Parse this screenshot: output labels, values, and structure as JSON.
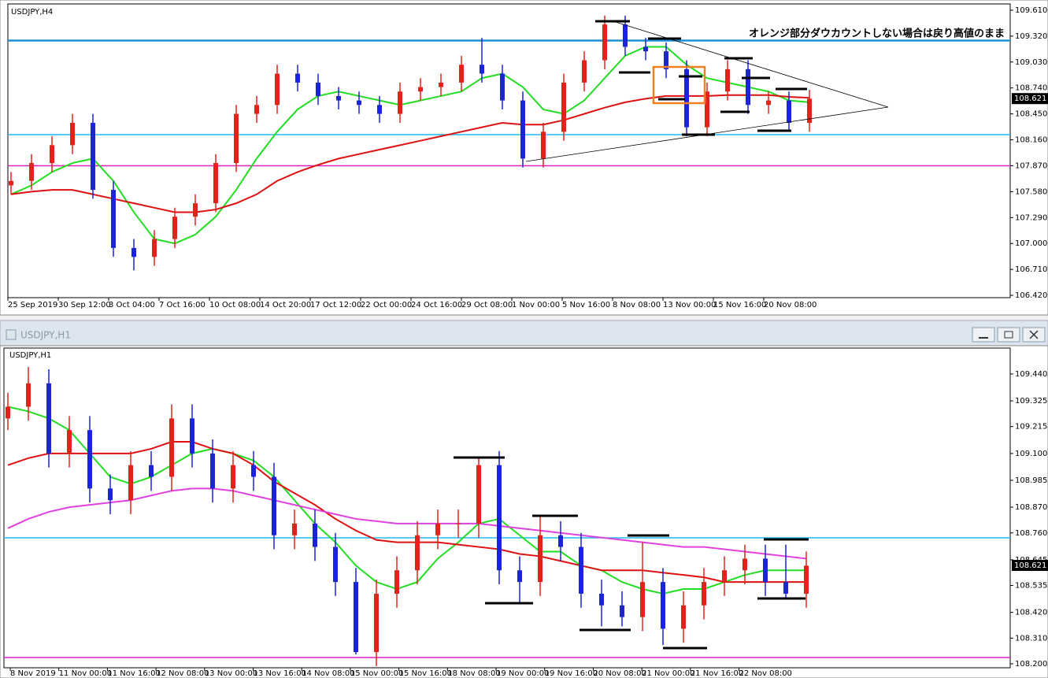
{
  "chart_data": [
    {
      "type": "candlestick",
      "symbol_label": "USDJPY,H4",
      "annotation": "オレンジ部分ダウカウントしない場合は戻り高値のまま",
      "ylim": [
        106.394,
        109.68
      ],
      "yticks": [
        {
          "value": 109.61,
          "label": "109.610"
        },
        {
          "value": 109.32,
          "label": "109.320"
        },
        {
          "value": 109.03,
          "label": "109.030"
        },
        {
          "value": 108.74,
          "label": "108.740"
        },
        {
          "value": 108.45,
          "label": "108.450"
        },
        {
          "value": 108.16,
          "label": "108.160"
        },
        {
          "value": 107.87,
          "label": "107.870"
        },
        {
          "value": 107.58,
          "label": "107.580"
        },
        {
          "value": 107.29,
          "label": "107.290"
        },
        {
          "value": 107.0,
          "label": "107.000"
        },
        {
          "value": 106.71,
          "label": "106.710"
        },
        {
          "value": 106.42,
          "label": "106.420"
        }
      ],
      "xtick_labels": [
        "25 Sep 2019",
        "30 Sep 12:00",
        "3 Oct 04:00",
        "7 Oct 16:00",
        "10 Oct 08:00",
        "14 Oct 20:00",
        "17 Oct 12:00",
        "22 Oct 00:00",
        "24 Oct 16:00",
        "29 Oct 08:00",
        "1 Nov 00:00",
        "5 Nov 16:00",
        "8 Nov 08:00",
        "13 Nov 00:00",
        "15 Nov 16:00",
        "20 Nov 08:00"
      ],
      "up_color": "#e0241c",
      "down_color": "#1c24d8",
      "open": [
        107.65,
        107.7,
        107.9,
        108.1,
        108.35,
        107.6,
        106.95,
        106.85,
        107.05,
        107.3,
        107.45,
        107.9,
        108.45,
        108.55,
        108.9,
        108.8,
        108.65,
        108.6,
        108.55,
        108.45,
        108.7,
        108.75,
        108.8,
        109.0,
        108.9,
        108.6,
        107.95,
        108.25,
        108.8,
        109.05,
        109.45,
        109.2,
        109.15,
        108.95,
        108.3,
        108.7,
        108.95,
        108.55,
        108.6,
        108.35
      ],
      "high": [
        107.8,
        108.0,
        108.2,
        108.45,
        108.45,
        107.7,
        107.05,
        107.15,
        107.4,
        107.55,
        108.0,
        108.55,
        108.65,
        109.0,
        109.0,
        108.9,
        108.75,
        108.7,
        108.65,
        108.8,
        108.85,
        108.9,
        109.1,
        109.3,
        109.0,
        108.7,
        108.35,
        108.9,
        109.15,
        109.55,
        109.55,
        109.3,
        109.25,
        109.05,
        108.8,
        109.05,
        109.05,
        108.7,
        108.7,
        108.72
      ],
      "low": [
        107.55,
        107.6,
        107.8,
        108.0,
        107.5,
        106.85,
        106.7,
        106.75,
        106.95,
        107.2,
        107.35,
        107.8,
        108.35,
        108.45,
        108.7,
        108.55,
        108.5,
        108.45,
        108.35,
        108.35,
        108.6,
        108.65,
        108.7,
        108.8,
        108.5,
        107.85,
        107.85,
        108.15,
        108.7,
        108.95,
        109.1,
        109.05,
        108.85,
        108.2,
        108.2,
        108.6,
        108.45,
        108.45,
        108.25,
        108.25
      ],
      "close": [
        107.7,
        107.9,
        108.1,
        108.35,
        107.6,
        106.95,
        106.85,
        107.05,
        107.3,
        107.45,
        107.9,
        108.45,
        108.55,
        108.9,
        108.8,
        108.65,
        108.6,
        108.55,
        108.45,
        108.7,
        108.75,
        108.8,
        109.0,
        108.9,
        108.6,
        107.95,
        108.25,
        108.8,
        109.05,
        109.45,
        109.2,
        109.15,
        108.95,
        108.3,
        108.7,
        108.95,
        108.55,
        108.6,
        108.35,
        108.62
      ],
      "series": [
        {
          "color": "#22dd22",
          "values": [
            107.55,
            107.65,
            107.8,
            107.9,
            107.95,
            107.7,
            107.35,
            107.05,
            107.0,
            107.1,
            107.3,
            107.6,
            107.95,
            108.25,
            108.5,
            108.65,
            108.7,
            108.65,
            108.6,
            108.55,
            108.6,
            108.65,
            108.7,
            108.85,
            108.9,
            108.75,
            108.5,
            108.45,
            108.6,
            108.85,
            109.1,
            109.2,
            109.2,
            109.0,
            108.85,
            108.8,
            108.75,
            108.7,
            108.6,
            108.58
          ]
        },
        {
          "color": "#dd1111",
          "values": [
            107.55,
            107.58,
            107.6,
            107.6,
            107.55,
            107.5,
            107.45,
            107.4,
            107.35,
            107.35,
            107.38,
            107.45,
            107.55,
            107.7,
            107.8,
            107.88,
            107.95,
            108.0,
            108.05,
            108.1,
            108.15,
            108.2,
            108.25,
            108.3,
            108.35,
            108.33,
            108.33,
            108.38,
            108.45,
            108.52,
            108.58,
            108.62,
            108.65,
            108.65,
            108.65,
            108.66,
            108.66,
            108.66,
            108.64,
            108.63
          ]
        }
      ],
      "levels": [
        {
          "value": 109.27,
          "color": "#1e90d8"
        },
        {
          "value": 108.218,
          "color": "#20b8f0"
        },
        {
          "value": 107.87,
          "color": "#e020c0"
        }
      ],
      "last_price": 108.621
    },
    {
      "type": "candlestick",
      "window_title": "USDJPY,H1",
      "symbol_label": "USDJPY,H1",
      "ylim": [
        108.183,
        109.551
      ],
      "yticks": [
        {
          "value": 109.44,
          "label": "109.440"
        },
        {
          "value": 109.325,
          "label": "109.325"
        },
        {
          "value": 109.215,
          "label": "109.215"
        },
        {
          "value": 109.1,
          "label": "109.100"
        },
        {
          "value": 108.985,
          "label": "108.985"
        },
        {
          "value": 108.87,
          "label": "108.870"
        },
        {
          "value": 108.76,
          "label": "108.760"
        },
        {
          "value": 108.645,
          "label": "108.645"
        },
        {
          "value": 108.535,
          "label": "108.535"
        },
        {
          "value": 108.42,
          "label": "108.420"
        },
        {
          "value": 108.31,
          "label": "108.310"
        },
        {
          "value": 108.2,
          "label": "108.200"
        }
      ],
      "xtick_labels": [
        "8 Nov 2019",
        "11 Nov 00:00",
        "11 Nov 16:00",
        "12 Nov 08:00",
        "13 Nov 00:00",
        "13 Nov 16:00",
        "14 Nov 08:00",
        "15 Nov 00:00",
        "15 Nov 16:00",
        "18 Nov 08:00",
        "19 Nov 00:00",
        "19 Nov 16:00",
        "20 Nov 08:00",
        "21 Nov 00:00",
        "21 Nov 16:00",
        "22 Nov 08:00"
      ],
      "up_color": "#e0241c",
      "down_color": "#1c24d8",
      "open": [
        109.25,
        109.3,
        109.4,
        109.1,
        109.2,
        108.95,
        108.9,
        109.05,
        109.0,
        109.25,
        109.1,
        108.95,
        109.05,
        109.0,
        108.75,
        108.8,
        108.7,
        108.55,
        108.25,
        108.5,
        108.6,
        108.75,
        108.8,
        108.8,
        109.05,
        108.6,
        108.55,
        108.75,
        108.7,
        108.5,
        108.45,
        108.4,
        108.55,
        108.35,
        108.45,
        108.55,
        108.6,
        108.65,
        108.55,
        108.5
      ],
      "high": [
        109.36,
        109.47,
        109.46,
        109.26,
        109.26,
        109.01,
        109.11,
        109.11,
        109.31,
        109.31,
        109.16,
        109.11,
        109.11,
        109.06,
        108.86,
        108.86,
        108.76,
        108.61,
        108.56,
        108.66,
        108.81,
        108.86,
        108.86,
        109.08,
        109.11,
        108.66,
        108.83,
        108.81,
        108.76,
        108.56,
        108.51,
        108.72,
        108.61,
        108.51,
        108.61,
        108.66,
        108.71,
        108.71,
        108.71,
        108.68
      ],
      "low": [
        109.2,
        109.24,
        109.04,
        109.04,
        108.89,
        108.84,
        108.84,
        108.94,
        108.94,
        109.04,
        108.89,
        108.89,
        108.94,
        108.69,
        108.69,
        108.64,
        108.49,
        108.24,
        108.19,
        108.44,
        108.54,
        108.69,
        108.74,
        108.74,
        108.54,
        108.46,
        108.49,
        108.64,
        108.44,
        108.36,
        108.36,
        108.34,
        108.28,
        108.29,
        108.39,
        108.49,
        108.54,
        108.49,
        108.48,
        108.44
      ],
      "close": [
        109.3,
        109.4,
        109.1,
        109.2,
        108.95,
        108.9,
        109.05,
        109.0,
        109.25,
        109.1,
        108.95,
        109.05,
        109.0,
        108.75,
        108.8,
        108.7,
        108.55,
        108.25,
        108.5,
        108.6,
        108.75,
        108.8,
        108.8,
        109.05,
        108.6,
        108.55,
        108.75,
        108.7,
        108.5,
        108.45,
        108.4,
        108.55,
        108.35,
        108.45,
        108.55,
        108.6,
        108.65,
        108.55,
        108.5,
        108.62
      ],
      "series": [
        {
          "color": "#22dd22",
          "values": [
            109.3,
            109.28,
            109.25,
            109.2,
            109.1,
            109.0,
            108.97,
            109.0,
            109.05,
            109.1,
            109.12,
            109.1,
            109.07,
            109.0,
            108.9,
            108.8,
            108.72,
            108.62,
            108.55,
            108.52,
            108.55,
            108.65,
            108.72,
            108.8,
            108.82,
            108.75,
            108.68,
            108.68,
            108.62,
            108.6,
            108.55,
            108.52,
            108.5,
            108.52,
            108.52,
            108.55,
            108.58,
            108.6,
            108.6,
            108.6
          ]
        },
        {
          "color": "#dd1111",
          "values": [
            109.05,
            109.08,
            109.1,
            109.1,
            109.1,
            109.1,
            109.1,
            109.12,
            109.15,
            109.15,
            109.12,
            109.1,
            109.05,
            108.98,
            108.93,
            108.88,
            108.82,
            108.77,
            108.73,
            108.72,
            108.72,
            108.72,
            108.71,
            108.7,
            108.69,
            108.67,
            108.66,
            108.64,
            108.62,
            108.6,
            108.6,
            108.6,
            108.59,
            108.58,
            108.57,
            108.55,
            108.55,
            108.55,
            108.55,
            108.55
          ]
        },
        {
          "color": "#e040e0",
          "values": [
            108.78,
            108.82,
            108.85,
            108.87,
            108.88,
            108.89,
            108.9,
            108.92,
            108.94,
            108.95,
            108.95,
            108.94,
            108.92,
            108.9,
            108.88,
            108.86,
            108.84,
            108.82,
            108.81,
            108.8,
            108.8,
            108.8,
            108.8,
            108.8,
            108.79,
            108.78,
            108.77,
            108.76,
            108.75,
            108.74,
            108.73,
            108.72,
            108.71,
            108.7,
            108.7,
            108.69,
            108.68,
            108.67,
            108.66,
            108.65
          ]
        }
      ],
      "levels": [
        {
          "value": 108.739,
          "color": "#20b8f0"
        },
        {
          "value": 108.227,
          "color": "#e020c0"
        }
      ],
      "last_price": 108.621
    }
  ]
}
